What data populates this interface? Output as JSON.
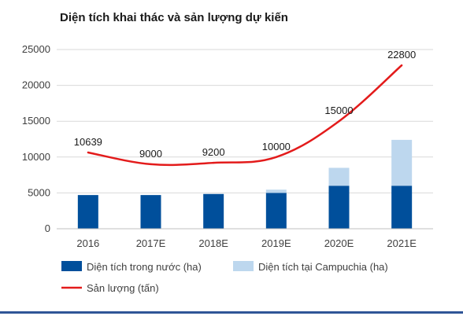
{
  "title": "Diện tích khai thác và sản lượng dự kiến",
  "colors": {
    "domestic": "#004f9b",
    "cambodia": "#bdd7ee",
    "output": "#e31b1b",
    "grid": "#d9d9d9",
    "rule": "#2f5597"
  },
  "chart_data": {
    "type": "bar",
    "categories": [
      "2016",
      "2017E",
      "2018E",
      "2019E",
      "2020E",
      "2021E"
    ],
    "series": [
      {
        "name": "Diện tích trong nước (ha)",
        "kind": "bar",
        "stack": "area",
        "values": [
          4700,
          4700,
          4850,
          5000,
          6000,
          6000
        ]
      },
      {
        "name": "Diện tích tại Campuchia (ha)",
        "kind": "bar",
        "stack": "area",
        "values": [
          0,
          0,
          0,
          450,
          2500,
          6400
        ]
      },
      {
        "name": "Sản lượng (tấn)",
        "kind": "line",
        "values": [
          10639,
          9000,
          9200,
          10000,
          15000,
          22800
        ]
      }
    ],
    "line_labels": [
      "10639",
      "9000",
      "9200",
      "10000",
      "15000",
      "22800"
    ],
    "yticks": [
      "0",
      "5000",
      "10000",
      "15000",
      "20000",
      "25000"
    ],
    "ylim": [
      0,
      25000
    ],
    "grid": true,
    "legend_position": "bottom",
    "title": "Diện tích khai thác và sản lượng dự kiến",
    "xlabel": "",
    "ylabel": ""
  }
}
